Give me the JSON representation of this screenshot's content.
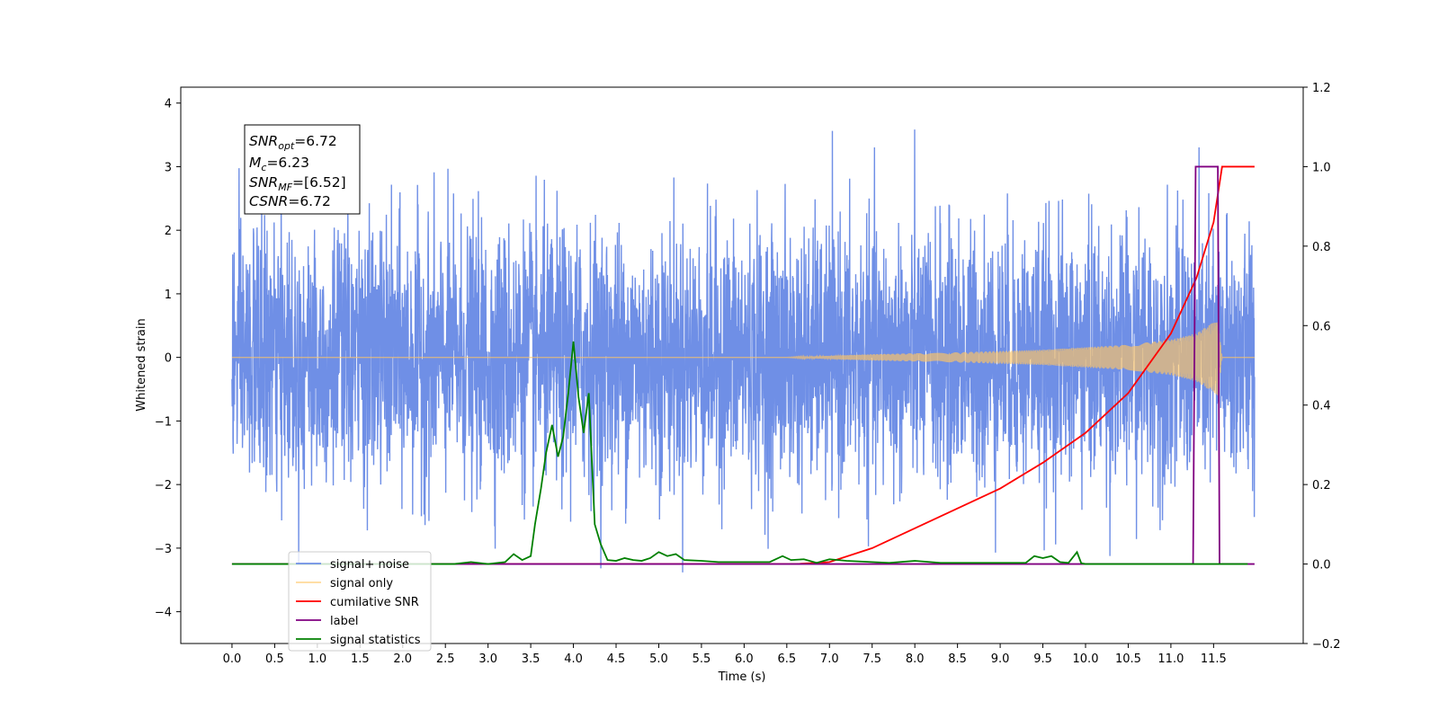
{
  "chart_data": {
    "type": "line",
    "xlabel": "Time (s)",
    "ylabel": "Whitened strain",
    "xlim": [
      -0.6,
      12.55
    ],
    "ylim": [
      -4.5,
      4.25
    ],
    "y2lim": [
      -0.2,
      1.2
    ],
    "x_ticks": [
      "0.0",
      "0.5",
      "1.0",
      "1.5",
      "2.0",
      "2.5",
      "3.0",
      "3.5",
      "4.0",
      "4.5",
      "5.0",
      "5.5",
      "6.0",
      "6.5",
      "7.0",
      "7.5",
      "8.0",
      "8.5",
      "9.0",
      "9.5",
      "10.0",
      "10.5",
      "11.0",
      "11.5"
    ],
    "y_ticks": [
      "4",
      "3",
      "2",
      "1",
      "0",
      "−1",
      "−2",
      "−3",
      "−4"
    ],
    "y2_ticks": [
      "1.2",
      "1.0",
      "0.8",
      "0.6",
      "0.4",
      "0.2",
      "0.0",
      "−0.2"
    ],
    "legend_placement": "lower-left",
    "annotation": {
      "snr_opt": {
        "main": "SNR",
        "sub": "opt",
        "value": "=6.72"
      },
      "mc": {
        "main": "M",
        "sub": "c",
        "value": "=6.23"
      },
      "snr_mf": {
        "main": "SNR",
        "sub": "MF",
        "value": "=[6.52]"
      },
      "csnr": {
        "main": "CSNR",
        "sub": "",
        "value": "=6.72"
      }
    },
    "series": [
      {
        "name": "signal+ noise",
        "color": "#6f8fe6",
        "axis": "left",
        "kind": "gaussian-noise",
        "x_range": [
          0.0,
          11.98
        ],
        "sigma": 1.0
      },
      {
        "name": "signal only",
        "color": "#ffc564",
        "axis": "left",
        "kind": "chirp-envelope",
        "envelope_x": [
          0.0,
          6.5,
          7.5,
          8.5,
          9.5,
          10.5,
          11.0,
          11.3,
          11.55,
          11.6,
          11.98
        ],
        "envelope_y": [
          0.0,
          0.0,
          0.05,
          0.08,
          0.12,
          0.2,
          0.28,
          0.38,
          0.6,
          0.0,
          0.0
        ]
      },
      {
        "name": "cumilative SNR",
        "color": "#ff0000",
        "axis": "right",
        "x": [
          0.0,
          6.6,
          7.0,
          7.5,
          8.0,
          8.5,
          9.0,
          9.5,
          10.0,
          10.5,
          11.0,
          11.3,
          11.5,
          11.6,
          11.98
        ],
        "values": [
          0.0,
          0.0,
          0.005,
          0.04,
          0.09,
          0.14,
          0.19,
          0.255,
          0.33,
          0.43,
          0.58,
          0.72,
          0.86,
          1.0,
          1.0
        ]
      },
      {
        "name": "label",
        "color": "#800080",
        "axis": "right",
        "x": [
          0.0,
          11.26,
          11.29,
          11.55,
          11.57,
          11.98
        ],
        "values": [
          0.0,
          0.0,
          1.0,
          1.0,
          0.0,
          0.0
        ]
      },
      {
        "name": "signal statistics",
        "color": "#008000",
        "axis": "right",
        "x": [
          0.0,
          2.6,
          2.8,
          3.0,
          3.2,
          3.3,
          3.4,
          3.5,
          3.55,
          3.62,
          3.68,
          3.75,
          3.82,
          3.88,
          3.94,
          4.0,
          4.06,
          4.12,
          4.18,
          4.25,
          4.32,
          4.4,
          4.5,
          4.6,
          4.7,
          4.8,
          4.9,
          5.0,
          5.1,
          5.2,
          5.3,
          5.5,
          5.7,
          6.0,
          6.3,
          6.45,
          6.55,
          6.7,
          6.85,
          7.0,
          7.2,
          7.5,
          7.7,
          8.0,
          8.3,
          8.7,
          9.0,
          9.3,
          9.4,
          9.5,
          9.6,
          9.7,
          9.8,
          9.9,
          9.95,
          10.0,
          10.1,
          10.5,
          11.0,
          11.5,
          11.9
        ],
        "values": [
          0.0,
          0.0,
          0.005,
          0.0,
          0.005,
          0.025,
          0.01,
          0.02,
          0.1,
          0.19,
          0.28,
          0.35,
          0.27,
          0.32,
          0.43,
          0.56,
          0.42,
          0.33,
          0.43,
          0.1,
          0.05,
          0.01,
          0.008,
          0.015,
          0.01,
          0.008,
          0.015,
          0.03,
          0.02,
          0.025,
          0.01,
          0.008,
          0.005,
          0.005,
          0.005,
          0.02,
          0.01,
          0.012,
          0.003,
          0.012,
          0.008,
          0.005,
          0.003,
          0.008,
          0.003,
          0.003,
          0.003,
          0.003,
          0.02,
          0.015,
          0.02,
          0.005,
          0.003,
          0.03,
          0.002,
          0.0,
          0.0,
          0.0,
          0.0,
          0.0,
          0.0
        ]
      }
    ]
  }
}
